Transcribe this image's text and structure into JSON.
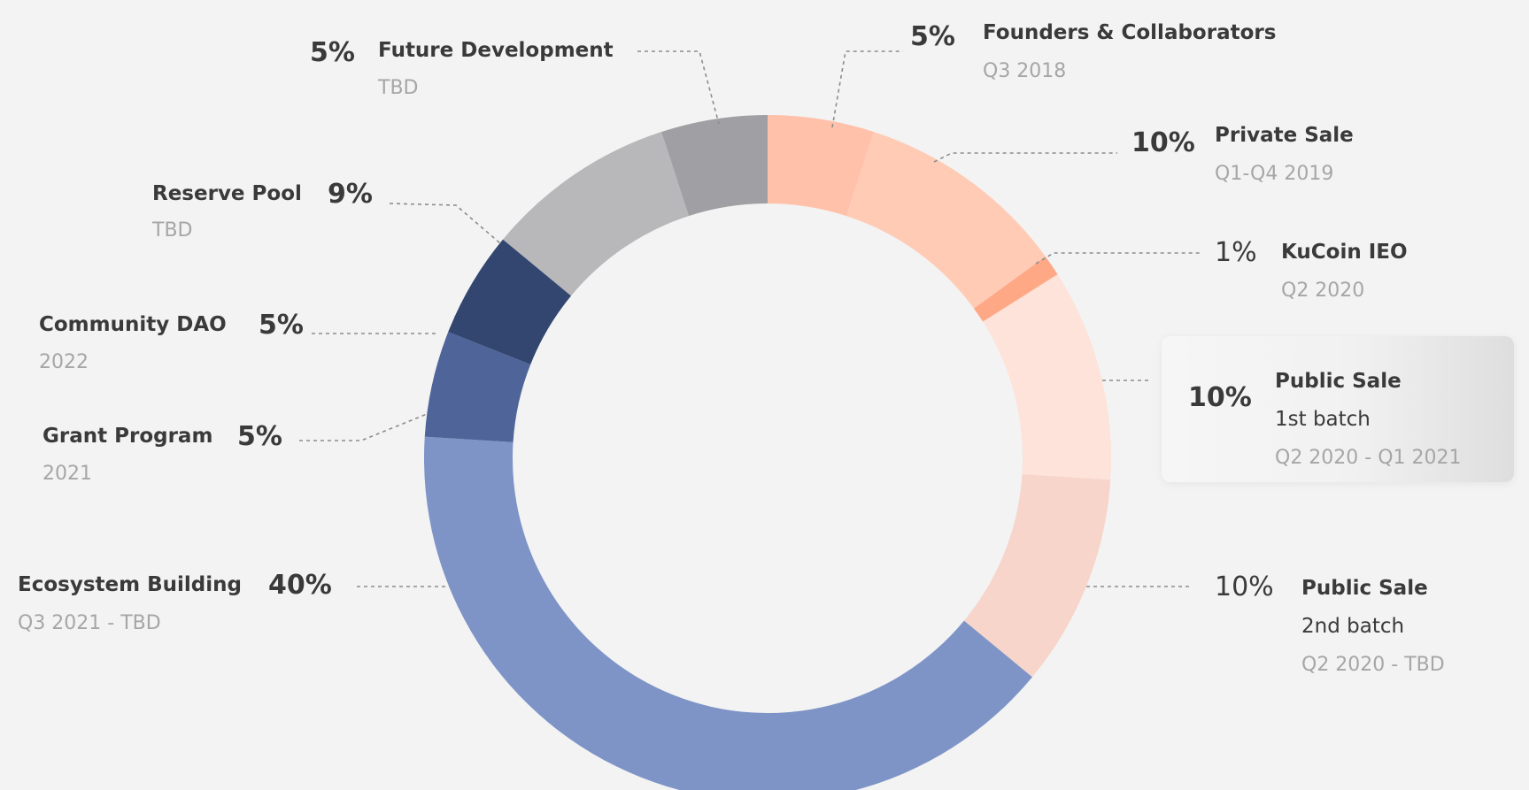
{
  "chart_data": {
    "type": "pie",
    "segments": [
      {
        "percent": 5,
        "label": "Founders & Collaborators",
        "date": "Q3 2018",
        "color": "#ffc1a9"
      },
      {
        "percent": 10,
        "label": "Private Sale",
        "date": "Q1-Q4 2019",
        "color": "#ffcbb5"
      },
      {
        "percent": 1,
        "label": "KuCoin IEO",
        "date": "Q2 2020",
        "color": "#ffa886"
      },
      {
        "percent": 10,
        "label": "Public Sale",
        "sublabel": "1st batch",
        "date": "Q2 2020 - Q1 2021",
        "color": "#fde3d9"
      },
      {
        "percent": 10,
        "label": "Public Sale",
        "sublabel": "2nd batch",
        "date": "Q2 2020 - TBD",
        "color": "#f7d5cb"
      },
      {
        "percent": 40,
        "label": "Ecosystem Building",
        "date": "Q3 2021 - TBD",
        "color": "#7e94c7"
      },
      {
        "percent": 5,
        "label": "Grant Program",
        "date": "2021",
        "color": "#4f6499"
      },
      {
        "percent": 5,
        "label": "Community DAO",
        "date": "2022",
        "color": "#33466f"
      },
      {
        "percent": 9,
        "label": "Reserve Pool",
        "date": "TBD",
        "color": "#b8b8bb"
      },
      {
        "percent": 5,
        "label": "Future Development",
        "date": "TBD",
        "color": "#a0a0a4"
      }
    ],
    "value_labels": [
      "5%",
      "10%",
      "1%",
      "10%",
      "10%",
      "40%",
      "5%",
      "5%",
      "9%",
      "5%"
    ]
  }
}
